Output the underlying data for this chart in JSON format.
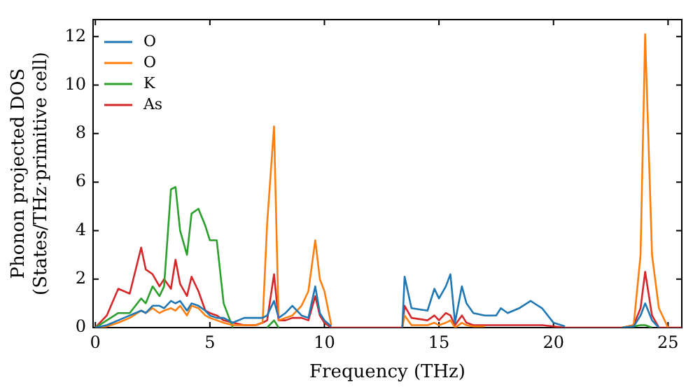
{
  "chart_data": {
    "type": "line",
    "xlabel": "Frequency (THz)",
    "ylabel": "Phonon projected DOS\n(States/THz·primitive cell)",
    "x": [
      0,
      0.5,
      1,
      1.5,
      2,
      2.2,
      2.5,
      2.8,
      3,
      3.3,
      3.5,
      3.7,
      4,
      4.2,
      4.5,
      4.8,
      5,
      5.3,
      5.6,
      6,
      6.5,
      7,
      7.3,
      7.5,
      7.8,
      8,
      8.3,
      8.6,
      9,
      9.3,
      9.6,
      9.8,
      10,
      10.3,
      10.6,
      11,
      12,
      13,
      13.4,
      13.5,
      13.8,
      14.5,
      14.8,
      15,
      15.3,
      15.5,
      15.7,
      16,
      16.2,
      16.5,
      17,
      17.5,
      17.7,
      18,
      18.5,
      19,
      19.5,
      20,
      20.5,
      21,
      23,
      23.5,
      23.8,
      24,
      24.3,
      24.6,
      25,
      25.6
    ],
    "series": [
      {
        "name": "O",
        "color": "#1f77b4",
        "values": [
          0,
          0.1,
          0.3,
          0.5,
          0.7,
          0.6,
          0.9,
          0.9,
          0.8,
          1.1,
          1.0,
          1.1,
          0.7,
          1.0,
          0.9,
          0.7,
          0.5,
          0.4,
          0.4,
          0.2,
          0.4,
          0.4,
          0.4,
          0.5,
          1.1,
          0.4,
          0.6,
          0.9,
          0.5,
          0.4,
          1.7,
          0.6,
          0.3,
          0.05,
          null,
          null,
          null,
          null,
          0,
          2.1,
          0.8,
          0.7,
          1.6,
          1.2,
          1.7,
          2.2,
          0.2,
          1.7,
          1.0,
          0.6,
          0.5,
          0.5,
          0.8,
          0.6,
          0.8,
          1.1,
          0.8,
          0.2,
          0.05,
          null,
          0,
          0.05,
          0.5,
          1.0,
          0.3,
          0,
          null,
          null
        ]
      },
      {
        "name": "O",
        "color": "#ff7f0e",
        "values": [
          0,
          0.05,
          0.2,
          0.4,
          0.7,
          0.6,
          0.8,
          0.6,
          0.7,
          0.8,
          0.7,
          0.9,
          0.5,
          0.9,
          0.8,
          0.5,
          0.4,
          0.3,
          0.2,
          0.1,
          0.1,
          0.1,
          0.2,
          4.3,
          8.3,
          0.3,
          0.4,
          0.5,
          0.9,
          1.5,
          3.6,
          2.0,
          1.5,
          0.1,
          null,
          null,
          null,
          null,
          0,
          0.5,
          0.1,
          0.1,
          0.2,
          0.1,
          0.2,
          0.3,
          0,
          0.2,
          0.1,
          0.05,
          0.05,
          null,
          null,
          null,
          null,
          null,
          null,
          null,
          null,
          null,
          0,
          0.1,
          3.0,
          12.1,
          3.0,
          0.8,
          0,
          null
        ]
      },
      {
        "name": "K",
        "color": "#2ca02c",
        "values": [
          0,
          0.3,
          0.6,
          0.6,
          1.2,
          1.0,
          1.7,
          1.3,
          1.7,
          5.7,
          5.8,
          4.0,
          3.0,
          4.7,
          4.9,
          4.2,
          3.6,
          3.6,
          1.0,
          0,
          null,
          null,
          null,
          0,
          0.3,
          0,
          null,
          null,
          null,
          null,
          null,
          null,
          null,
          null,
          null,
          null,
          null,
          null,
          null,
          null,
          null,
          null,
          null,
          null,
          null,
          null,
          null,
          null,
          null,
          null,
          null,
          null,
          null,
          null,
          null,
          null,
          null,
          null,
          null,
          null,
          0,
          0.05,
          0.1,
          0.1,
          0,
          null,
          null,
          null
        ]
      },
      {
        "name": "As",
        "color": "#d62728",
        "values": [
          0,
          0.5,
          1.6,
          1.4,
          3.3,
          2.4,
          2.2,
          1.7,
          2.0,
          1.6,
          2.8,
          1.8,
          1.3,
          2.1,
          1.5,
          0.7,
          0.6,
          0.5,
          0.3,
          0.2,
          0.1,
          0.1,
          0.2,
          0.3,
          2.2,
          0.3,
          0.3,
          0.4,
          0.4,
          0.3,
          1.3,
          0.5,
          0.2,
          0,
          0,
          0,
          0,
          0,
          0,
          0.9,
          0.4,
          0.3,
          0.5,
          0.3,
          0.6,
          0.5,
          0.1,
          0.5,
          0.2,
          0.1,
          0.1,
          0.1,
          0.1,
          0.1,
          0.1,
          0.1,
          0.1,
          0.05,
          0,
          0,
          0,
          0.1,
          0.8,
          2.3,
          0.5,
          0,
          0,
          0
        ]
      }
    ],
    "xlim": [
      -0.1,
      25.6
    ],
    "xticks": [
      0,
      5,
      10,
      15,
      20,
      25
    ],
    "ylim": [
      0,
      12.7
    ],
    "yticks": [
      0,
      2,
      4,
      6,
      8,
      10,
      12
    ],
    "grid": false,
    "legend": "top left",
    "marker": "none",
    "line_style": "solid"
  }
}
